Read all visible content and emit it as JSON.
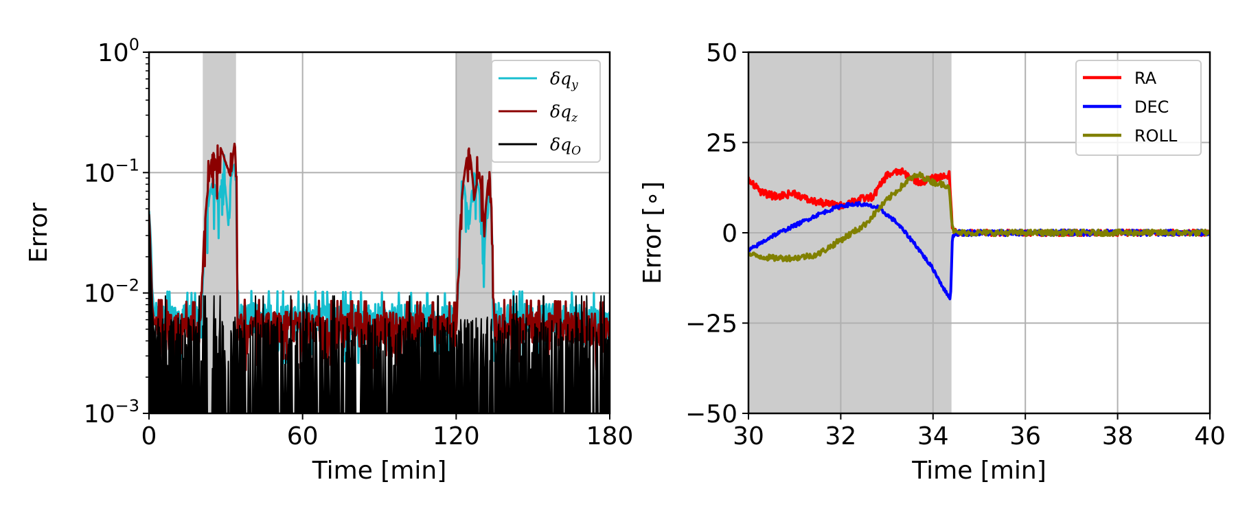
{
  "colors": {
    "dqy": "#17becf",
    "dqz": "#8b0000",
    "dqo": "#000000",
    "ra": "#ff0000",
    "dec": "#0000ff",
    "roll": "#808000",
    "shade": "#cccccc",
    "grid": "#b0b0b0"
  },
  "chart_data": [
    {
      "type": "line",
      "yscale": "log",
      "xlabel": "Time [min]",
      "ylabel": "Error",
      "xlim": [
        0,
        180
      ],
      "ylim": [
        0.001,
        1
      ],
      "grid": true,
      "legend_loc": "upper right",
      "xticks": [
        "0",
        "60",
        "120",
        "180"
      ],
      "yticks": [
        {
          "base": "10",
          "exp": "0"
        },
        {
          "base": "10",
          "exp": "−1"
        },
        {
          "base": "10",
          "exp": "−2"
        },
        {
          "base": "10",
          "exp": "−3"
        }
      ],
      "shaded_intervals": [
        [
          21,
          34
        ],
        [
          120,
          134
        ]
      ],
      "series": [
        {
          "name": {
            "main": "δq",
            "sub": "y"
          },
          "color": "#17becf",
          "linewidth": 3.2,
          "baseline": 0.0062,
          "noise": 0.0018,
          "points": [
            [
              0,
              0.048
            ],
            [
              0.6,
              0.03
            ],
            [
              1.2,
              0.011
            ],
            [
              2,
              0.0065
            ],
            [
              20,
              0.0062
            ],
            [
              21,
              0.012
            ],
            [
              23,
              0.05
            ],
            [
              25,
              0.09
            ],
            [
              27,
              0.055
            ],
            [
              29,
              0.1
            ],
            [
              31,
              0.035
            ],
            [
              32,
              0.09
            ],
            [
              33.5,
              0.12
            ],
            [
              34.5,
              0.0065
            ],
            [
              120,
              0.0062
            ],
            [
              121,
              0.012
            ],
            [
              123,
              0.08
            ],
            [
              125,
              0.03
            ],
            [
              127,
              0.1
            ],
            [
              129,
              0.07
            ],
            [
              131,
              0.02
            ],
            [
              133,
              0.08
            ],
            [
              134.5,
              0.0065
            ],
            [
              180,
              0.0062
            ]
          ]
        },
        {
          "name": {
            "main": "δq",
            "sub": "z"
          },
          "color": "#8b0000",
          "linewidth": 3.2,
          "baseline": 0.0052,
          "noise": 0.0016,
          "points": [
            [
              0,
              0.045
            ],
            [
              0.6,
              0.02
            ],
            [
              1.2,
              0.008
            ],
            [
              2,
              0.0055
            ],
            [
              20,
              0.0052
            ],
            [
              21,
              0.015
            ],
            [
              23,
              0.07
            ],
            [
              25,
              0.15
            ],
            [
              27,
              0.1
            ],
            [
              28,
              0.16
            ],
            [
              30,
              0.12
            ],
            [
              32,
              0.09
            ],
            [
              33.5,
              0.18
            ],
            [
              34.5,
              0.0055
            ],
            [
              120,
              0.0052
            ],
            [
              121,
              0.015
            ],
            [
              123,
              0.09
            ],
            [
              125,
              0.16
            ],
            [
              127,
              0.06
            ],
            [
              129,
              0.1
            ],
            [
              131,
              0.03
            ],
            [
              133,
              0.1
            ],
            [
              134.5,
              0.0055
            ],
            [
              180,
              0.0052
            ]
          ]
        },
        {
          "name": {
            "main": "δq",
            "sub": "O"
          },
          "color": "#000000",
          "linewidth": 2,
          "baseline": 0.0045,
          "noise": 0.0018,
          "fill_to_bottom": true,
          "points": [
            [
              0,
              0.04
            ],
            [
              0.6,
              0.015
            ],
            [
              1.2,
              0.007
            ],
            [
              2,
              0.0045
            ],
            [
              180,
              0.0045
            ]
          ]
        }
      ]
    },
    {
      "type": "line",
      "xlabel": "Time [min]",
      "ylabel": "Error [∘]",
      "xlim": [
        30,
        40
      ],
      "ylim": [
        -50,
        50
      ],
      "grid": true,
      "legend_loc": "upper right",
      "xticks": [
        "30",
        "32",
        "34",
        "36",
        "38",
        "40"
      ],
      "yticks": [
        "50",
        "25",
        "0",
        "−25",
        "−50"
      ],
      "shaded_intervals": [
        [
          30,
          34.4
        ]
      ],
      "series": [
        {
          "name": "RA",
          "color": "#ff0000",
          "linewidth": 4,
          "noise": 1.0,
          "points": [
            [
              30,
              15
            ],
            [
              30.3,
              11
            ],
            [
              30.6,
              10
            ],
            [
              31,
              11
            ],
            [
              31.3,
              9
            ],
            [
              31.7,
              8
            ],
            [
              32,
              7.5
            ],
            [
              32.3,
              9
            ],
            [
              32.7,
              10
            ],
            [
              33,
              16
            ],
            [
              33.3,
              17
            ],
            [
              33.7,
              14
            ],
            [
              34,
              15
            ],
            [
              34.35,
              16
            ],
            [
              34.42,
              1
            ],
            [
              34.5,
              0
            ],
            [
              40,
              0
            ]
          ]
        },
        {
          "name": "DEC",
          "color": "#0000ff",
          "linewidth": 4,
          "noise": 0.5,
          "points": [
            [
              30,
              -5
            ],
            [
              30.5,
              -1
            ],
            [
              31,
              2
            ],
            [
              31.5,
              5
            ],
            [
              32,
              7.5
            ],
            [
              32.4,
              8
            ],
            [
              32.8,
              7
            ],
            [
              33.2,
              3
            ],
            [
              33.6,
              -3
            ],
            [
              34,
              -10
            ],
            [
              34.3,
              -17
            ],
            [
              34.38,
              -18
            ],
            [
              34.42,
              -1
            ],
            [
              34.5,
              0
            ],
            [
              40,
              0
            ]
          ]
        },
        {
          "name": "ROLL",
          "color": "#808000",
          "linewidth": 4,
          "noise": 0.8,
          "points": [
            [
              30,
              -6
            ],
            [
              30.5,
              -7
            ],
            [
              31,
              -7
            ],
            [
              31.5,
              -6
            ],
            [
              32,
              -2
            ],
            [
              32.5,
              2
            ],
            [
              33,
              9
            ],
            [
              33.5,
              15
            ],
            [
              33.7,
              16
            ],
            [
              34,
              14
            ],
            [
              34.35,
              13
            ],
            [
              34.42,
              1
            ],
            [
              34.5,
              0
            ],
            [
              40,
              0
            ]
          ]
        }
      ]
    }
  ]
}
